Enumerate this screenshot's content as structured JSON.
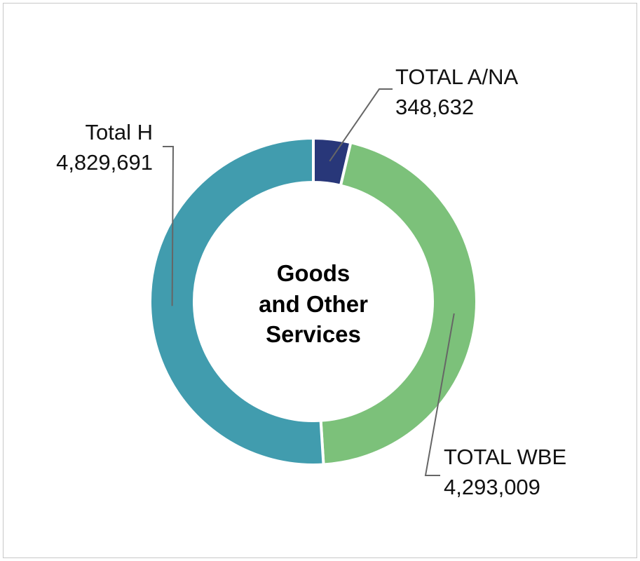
{
  "chart_data": {
    "type": "pie",
    "variant": "donut",
    "center_label": [
      "Goods",
      "and Other",
      "Services"
    ],
    "slices": [
      {
        "label": "TOTAL A/NA",
        "value": 348632,
        "value_text": "348,632",
        "color": "#283779"
      },
      {
        "label": "TOTAL WBE",
        "value": 4293009,
        "value_text": "4,293,009",
        "color": "#7cc17a"
      },
      {
        "label": "Total H",
        "value": 4829691,
        "value_text": "4,829,691",
        "color": "#419cae"
      }
    ],
    "start_angle_deg": 0,
    "direction": "clockwise",
    "legend": "none"
  }
}
